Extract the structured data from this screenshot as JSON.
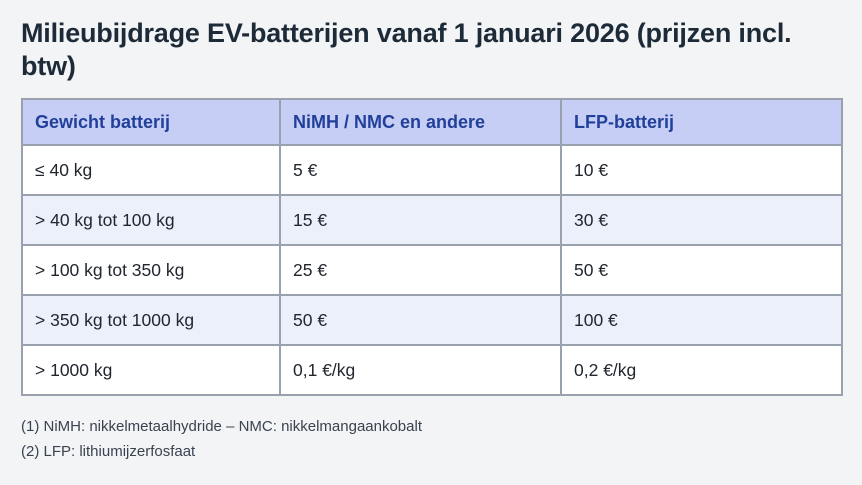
{
  "page": {
    "title": "Milieubijdrage EV-batterijen vanaf 1 januari 2026 (prijzen incl. btw)"
  },
  "table": {
    "headers": [
      "Gewicht batterij",
      "NiMH / NMC en andere",
      "LFP-batterij"
    ],
    "rows": [
      {
        "cells": [
          "≤ 40 kg",
          "5 €",
          "10 €"
        ]
      },
      {
        "cells": [
          "> 40 kg tot 100 kg",
          "15 €",
          "30 €"
        ]
      },
      {
        "cells": [
          "> 100 kg tot 350 kg",
          "25 €",
          "50 €"
        ]
      },
      {
        "cells": [
          "> 350 kg tot 1000 kg",
          "50 €",
          "100 €"
        ]
      },
      {
        "cells": [
          "> 1000 kg",
          "0,1 €/kg",
          "0,2 €/kg"
        ]
      }
    ]
  },
  "footnotes": [
    "(1) NiMH: nikkelmetaalhydride – NMC: nikkelmangaankobalt",
    "(2) LFP: lithiumijzerfosfaat"
  ],
  "colors": {
    "page_background": "#f2f4f6",
    "header_background": "#c7cef6",
    "header_text": "#21409a",
    "row_alt_background": "#ecf0fb",
    "row_background": "#ffffff",
    "border": "#9aa1ae",
    "title_text": "#1d2a38",
    "body_text": "#22262e",
    "footnote_text": "#3a4350"
  }
}
